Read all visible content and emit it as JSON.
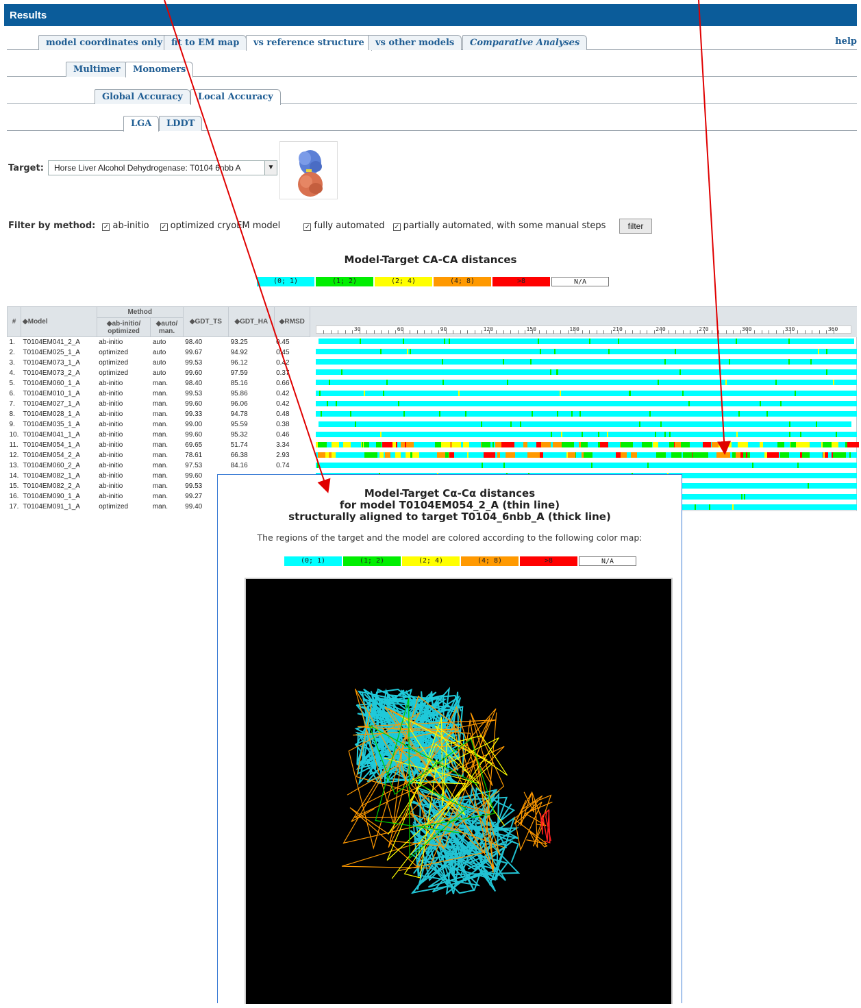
{
  "header": {
    "title": "Results"
  },
  "tabs_main": [
    {
      "label": "model coordinates only",
      "active": false,
      "italic": false
    },
    {
      "label": "fit to EM map",
      "active": false,
      "italic": false
    },
    {
      "label": "vs reference structure",
      "active": true,
      "italic": false
    },
    {
      "label": "vs other models",
      "active": false,
      "italic": false
    },
    {
      "label": "Comparative Analyses",
      "active": false,
      "italic": true
    }
  ],
  "help_label": "help",
  "tabs_level2": [
    {
      "label": "Multimer",
      "active": false
    },
    {
      "label": "Monomers",
      "active": true
    }
  ],
  "tabs_level3": [
    {
      "label": "Global Accuracy",
      "active": false
    },
    {
      "label": "Local Accuracy",
      "active": true
    }
  ],
  "tabs_level4": [
    {
      "label": "LGA",
      "active": true
    },
    {
      "label": "LDDT",
      "active": false
    }
  ],
  "target": {
    "label": "Target:",
    "value": "Horse Liver Alcohol Dehydrogenase: T0104  6nbb  A"
  },
  "filter": {
    "label": "Filter by method:",
    "options": [
      {
        "label": "ab-initio",
        "checked": true
      },
      {
        "label": "optimized cryoEM model",
        "checked": true
      },
      {
        "label": "fully automated",
        "checked": true
      },
      {
        "label": "partially automated, with some manual steps",
        "checked": true
      }
    ],
    "button": "filter"
  },
  "legend_title": "Model-Target CA-CA distances",
  "legend": [
    {
      "label": "(0; 1)",
      "color": "#00ffff"
    },
    {
      "label": "(1; 2)",
      "color": "#00ee00"
    },
    {
      "label": "(2; 4)",
      "color": "#ffff00"
    },
    {
      "label": "(4; 8)",
      "color": "#ff9900"
    },
    {
      "label": ">8",
      "color": "#ff0000"
    },
    {
      "label": "N/A",
      "color": "#ffffff"
    }
  ],
  "table": {
    "headers": {
      "num": "#",
      "model": "Model",
      "method": "Method",
      "abinitio": "ab-initio/ optimized",
      "auto": "auto/ man.",
      "gdt_ts": "GDT_TS",
      "gdt_ha": "GDT_HA",
      "rmsd": "RMSD"
    },
    "rows": [
      {
        "n": "1.",
        "model": "T0104EM041_2_A",
        "method": "ab-initio",
        "auto": "auto",
        "gdt_ts": "98.40",
        "gdt_ha": "93.25",
        "rmsd": "0.45"
      },
      {
        "n": "2.",
        "model": "T0104EM025_1_A",
        "method": "optimized",
        "auto": "auto",
        "gdt_ts": "99.67",
        "gdt_ha": "94.92",
        "rmsd": "0.45"
      },
      {
        "n": "3.",
        "model": "T0104EM073_1_A",
        "method": "optimized",
        "auto": "auto",
        "gdt_ts": "99.53",
        "gdt_ha": "96.12",
        "rmsd": "0.42"
      },
      {
        "n": "4.",
        "model": "T0104EM073_2_A",
        "method": "optimized",
        "auto": "auto",
        "gdt_ts": "99.60",
        "gdt_ha": "97.59",
        "rmsd": "0.37"
      },
      {
        "n": "5.",
        "model": "T0104EM060_1_A",
        "method": "ab-initio",
        "auto": "man.",
        "gdt_ts": "98.40",
        "gdt_ha": "85.16",
        "rmsd": "0.66"
      },
      {
        "n": "6.",
        "model": "T0104EM010_1_A",
        "method": "ab-initio",
        "auto": "man.",
        "gdt_ts": "99.53",
        "gdt_ha": "95.86",
        "rmsd": "0.42"
      },
      {
        "n": "7.",
        "model": "T0104EM027_1_A",
        "method": "ab-initio",
        "auto": "man.",
        "gdt_ts": "99.60",
        "gdt_ha": "96.06",
        "rmsd": "0.42"
      },
      {
        "n": "8.",
        "model": "T0104EM028_1_A",
        "method": "ab-initio",
        "auto": "man.",
        "gdt_ts": "99.33",
        "gdt_ha": "94.78",
        "rmsd": "0.48"
      },
      {
        "n": "9.",
        "model": "T0104EM035_1_A",
        "method": "ab-initio",
        "auto": "man.",
        "gdt_ts": "99.00",
        "gdt_ha": "95.59",
        "rmsd": "0.38"
      },
      {
        "n": "10.",
        "model": "T0104EM041_1_A",
        "method": "ab-initio",
        "auto": "man.",
        "gdt_ts": "99.60",
        "gdt_ha": "95.32",
        "rmsd": "0.46"
      },
      {
        "n": "11.",
        "model": "T0104EM054_1_A",
        "method": "ab-initio",
        "auto": "man.",
        "gdt_ts": "69.65",
        "gdt_ha": "51.74",
        "rmsd": "3.34"
      },
      {
        "n": "12.",
        "model": "T0104EM054_2_A",
        "method": "ab-initio",
        "auto": "man.",
        "gdt_ts": "78.61",
        "gdt_ha": "66.38",
        "rmsd": "2.93"
      },
      {
        "n": "13.",
        "model": "T0104EM060_2_A",
        "method": "ab-initio",
        "auto": "man.",
        "gdt_ts": "97.53",
        "gdt_ha": "84.16",
        "rmsd": "0.74"
      },
      {
        "n": "14.",
        "model": "T0104EM082_1_A",
        "method": "ab-initio",
        "auto": "man.",
        "gdt_ts": "99.60",
        "gdt_ha": "",
        "rmsd": ""
      },
      {
        "n": "15.",
        "model": "T0104EM082_2_A",
        "method": "ab-initio",
        "auto": "man.",
        "gdt_ts": "99.53",
        "gdt_ha": "",
        "rmsd": ""
      },
      {
        "n": "16.",
        "model": "T0104EM090_1_A",
        "method": "ab-initio",
        "auto": "man.",
        "gdt_ts": "99.27",
        "gdt_ha": "",
        "rmsd": ""
      },
      {
        "n": "17.",
        "model": "T0104EM091_1_A",
        "method": "optimized",
        "auto": "man.",
        "gdt_ts": "99.40",
        "gdt_ha": "",
        "rmsd": ""
      }
    ]
  },
  "axis_ticks": [
    "30",
    "60",
    "90",
    "120",
    "150",
    "180",
    "210",
    "240",
    "270",
    "300",
    "330",
    "360"
  ],
  "popup": {
    "title_lines": [
      "Model-Target Cα-Cα distances",
      "for model T0104EM054_2_A (thin line)",
      "structurally aligned to target T0104_6nbb_A (thick line)"
    ],
    "note": "The regions of the target and the model are colored according to the following color map:"
  }
}
